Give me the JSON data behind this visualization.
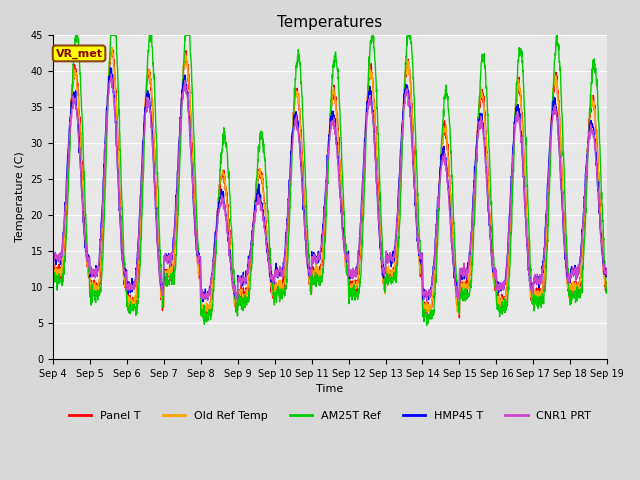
{
  "title": "Temperatures",
  "xlabel": "Time",
  "ylabel": "Temperature (C)",
  "ylim": [
    0,
    45
  ],
  "n_days": 15,
  "x_tick_labels": [
    "Sep 4",
    "Sep 5",
    "Sep 6",
    "Sep 7",
    "Sep 8",
    "Sep 9",
    "Sep 10",
    "Sep 11",
    "Sep 12",
    "Sep 13",
    "Sep 14",
    "Sep 15",
    "Sep 16",
    "Sep 17",
    "Sep 18",
    "Sep 19"
  ],
  "annotation": "VR_met",
  "annotation_box_facecolor": "#ffff00",
  "annotation_box_edgecolor": "#8b4513",
  "annotation_text_color": "#8b0000",
  "annotation_fontsize": 8,
  "series": {
    "Panel T": {
      "color": "#ff0000",
      "lw": 1.0
    },
    "Old Ref Temp": {
      "color": "#ffa500",
      "lw": 1.0
    },
    "AM25T Ref": {
      "color": "#00cc00",
      "lw": 1.0
    },
    "HMP45 T": {
      "color": "#0000ff",
      "lw": 1.0
    },
    "CNR1 PRT": {
      "color": "#cc44cc",
      "lw": 1.0
    }
  },
  "axes_bg": "#e8e8e8",
  "grid_color": "#ffffff",
  "title_fontsize": 11,
  "legend_fontsize": 8,
  "tick_fontsize": 7,
  "label_fontsize": 8
}
